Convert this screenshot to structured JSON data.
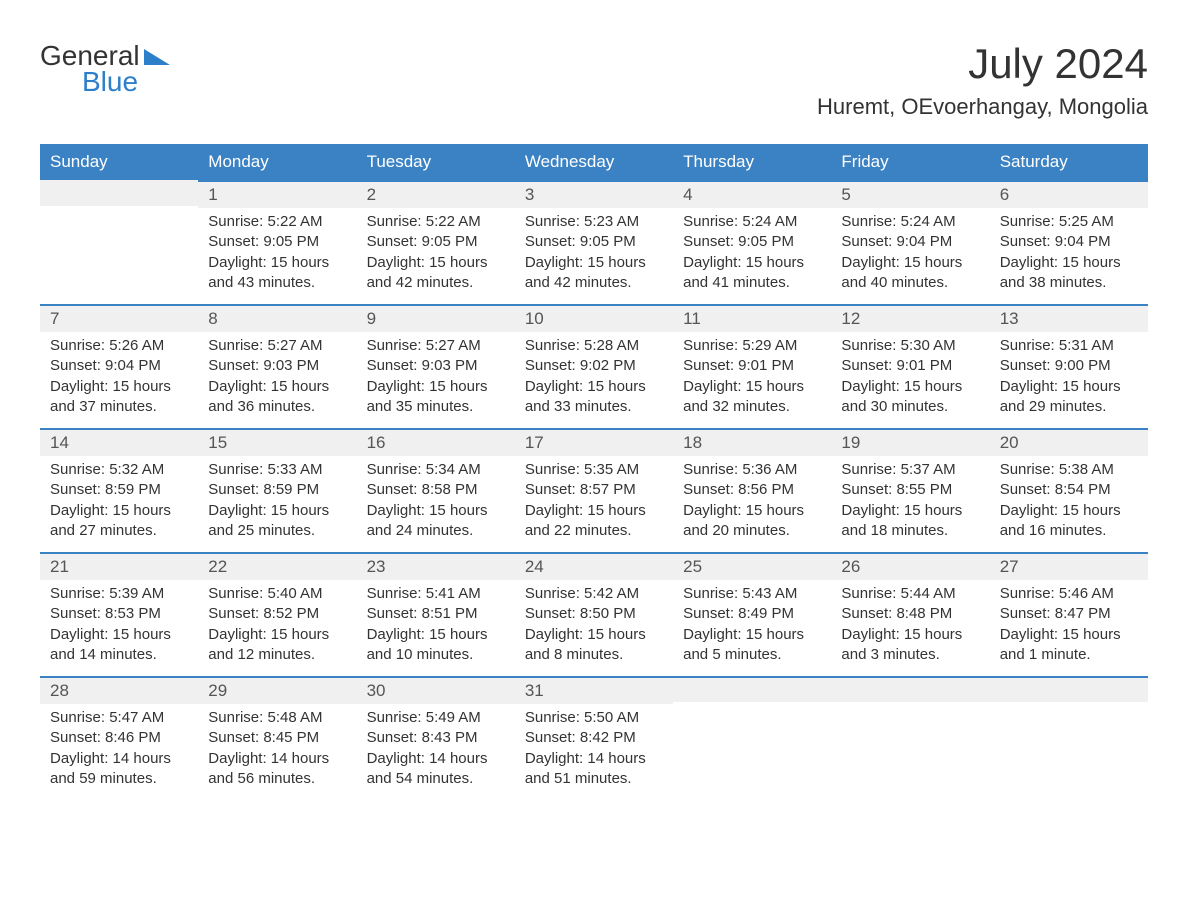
{
  "logo": {
    "text1": "General",
    "text2": "Blue",
    "text_color_primary": "#333333",
    "text_color_accent": "#2d7fc9",
    "triangle_color": "#2d7fc9"
  },
  "header": {
    "month_title": "July 2024",
    "location": "Huremt, OEvoerhangay, Mongolia",
    "title_fontsize": 42,
    "location_fontsize": 22
  },
  "colors": {
    "header_bg": "#3b82c4",
    "header_text": "#ffffff",
    "day_strip_bg": "#f0f0f0",
    "day_strip_border": "#3b82c4",
    "body_bg": "#ffffff",
    "text": "#333333",
    "day_num_color": "#555555"
  },
  "calendar": {
    "columns": [
      "Sunday",
      "Monday",
      "Tuesday",
      "Wednesday",
      "Thursday",
      "Friday",
      "Saturday"
    ],
    "weeks": [
      [
        null,
        {
          "num": "1",
          "sunrise": "Sunrise: 5:22 AM",
          "sunset": "Sunset: 9:05 PM",
          "daylight": "Daylight: 15 hours and 43 minutes."
        },
        {
          "num": "2",
          "sunrise": "Sunrise: 5:22 AM",
          "sunset": "Sunset: 9:05 PM",
          "daylight": "Daylight: 15 hours and 42 minutes."
        },
        {
          "num": "3",
          "sunrise": "Sunrise: 5:23 AM",
          "sunset": "Sunset: 9:05 PM",
          "daylight": "Daylight: 15 hours and 42 minutes."
        },
        {
          "num": "4",
          "sunrise": "Sunrise: 5:24 AM",
          "sunset": "Sunset: 9:05 PM",
          "daylight": "Daylight: 15 hours and 41 minutes."
        },
        {
          "num": "5",
          "sunrise": "Sunrise: 5:24 AM",
          "sunset": "Sunset: 9:04 PM",
          "daylight": "Daylight: 15 hours and 40 minutes."
        },
        {
          "num": "6",
          "sunrise": "Sunrise: 5:25 AM",
          "sunset": "Sunset: 9:04 PM",
          "daylight": "Daylight: 15 hours and 38 minutes."
        }
      ],
      [
        {
          "num": "7",
          "sunrise": "Sunrise: 5:26 AM",
          "sunset": "Sunset: 9:04 PM",
          "daylight": "Daylight: 15 hours and 37 minutes."
        },
        {
          "num": "8",
          "sunrise": "Sunrise: 5:27 AM",
          "sunset": "Sunset: 9:03 PM",
          "daylight": "Daylight: 15 hours and 36 minutes."
        },
        {
          "num": "9",
          "sunrise": "Sunrise: 5:27 AM",
          "sunset": "Sunset: 9:03 PM",
          "daylight": "Daylight: 15 hours and 35 minutes."
        },
        {
          "num": "10",
          "sunrise": "Sunrise: 5:28 AM",
          "sunset": "Sunset: 9:02 PM",
          "daylight": "Daylight: 15 hours and 33 minutes."
        },
        {
          "num": "11",
          "sunrise": "Sunrise: 5:29 AM",
          "sunset": "Sunset: 9:01 PM",
          "daylight": "Daylight: 15 hours and 32 minutes."
        },
        {
          "num": "12",
          "sunrise": "Sunrise: 5:30 AM",
          "sunset": "Sunset: 9:01 PM",
          "daylight": "Daylight: 15 hours and 30 minutes."
        },
        {
          "num": "13",
          "sunrise": "Sunrise: 5:31 AM",
          "sunset": "Sunset: 9:00 PM",
          "daylight": "Daylight: 15 hours and 29 minutes."
        }
      ],
      [
        {
          "num": "14",
          "sunrise": "Sunrise: 5:32 AM",
          "sunset": "Sunset: 8:59 PM",
          "daylight": "Daylight: 15 hours and 27 minutes."
        },
        {
          "num": "15",
          "sunrise": "Sunrise: 5:33 AM",
          "sunset": "Sunset: 8:59 PM",
          "daylight": "Daylight: 15 hours and 25 minutes."
        },
        {
          "num": "16",
          "sunrise": "Sunrise: 5:34 AM",
          "sunset": "Sunset: 8:58 PM",
          "daylight": "Daylight: 15 hours and 24 minutes."
        },
        {
          "num": "17",
          "sunrise": "Sunrise: 5:35 AM",
          "sunset": "Sunset: 8:57 PM",
          "daylight": "Daylight: 15 hours and 22 minutes."
        },
        {
          "num": "18",
          "sunrise": "Sunrise: 5:36 AM",
          "sunset": "Sunset: 8:56 PM",
          "daylight": "Daylight: 15 hours and 20 minutes."
        },
        {
          "num": "19",
          "sunrise": "Sunrise: 5:37 AM",
          "sunset": "Sunset: 8:55 PM",
          "daylight": "Daylight: 15 hours and 18 minutes."
        },
        {
          "num": "20",
          "sunrise": "Sunrise: 5:38 AM",
          "sunset": "Sunset: 8:54 PM",
          "daylight": "Daylight: 15 hours and 16 minutes."
        }
      ],
      [
        {
          "num": "21",
          "sunrise": "Sunrise: 5:39 AM",
          "sunset": "Sunset: 8:53 PM",
          "daylight": "Daylight: 15 hours and 14 minutes."
        },
        {
          "num": "22",
          "sunrise": "Sunrise: 5:40 AM",
          "sunset": "Sunset: 8:52 PM",
          "daylight": "Daylight: 15 hours and 12 minutes."
        },
        {
          "num": "23",
          "sunrise": "Sunrise: 5:41 AM",
          "sunset": "Sunset: 8:51 PM",
          "daylight": "Daylight: 15 hours and 10 minutes."
        },
        {
          "num": "24",
          "sunrise": "Sunrise: 5:42 AM",
          "sunset": "Sunset: 8:50 PM",
          "daylight": "Daylight: 15 hours and 8 minutes."
        },
        {
          "num": "25",
          "sunrise": "Sunrise: 5:43 AM",
          "sunset": "Sunset: 8:49 PM",
          "daylight": "Daylight: 15 hours and 5 minutes."
        },
        {
          "num": "26",
          "sunrise": "Sunrise: 5:44 AM",
          "sunset": "Sunset: 8:48 PM",
          "daylight": "Daylight: 15 hours and 3 minutes."
        },
        {
          "num": "27",
          "sunrise": "Sunrise: 5:46 AM",
          "sunset": "Sunset: 8:47 PM",
          "daylight": "Daylight: 15 hours and 1 minute."
        }
      ],
      [
        {
          "num": "28",
          "sunrise": "Sunrise: 5:47 AM",
          "sunset": "Sunset: 8:46 PM",
          "daylight": "Daylight: 14 hours and 59 minutes."
        },
        {
          "num": "29",
          "sunrise": "Sunrise: 5:48 AM",
          "sunset": "Sunset: 8:45 PM",
          "daylight": "Daylight: 14 hours and 56 minutes."
        },
        {
          "num": "30",
          "sunrise": "Sunrise: 5:49 AM",
          "sunset": "Sunset: 8:43 PM",
          "daylight": "Daylight: 14 hours and 54 minutes."
        },
        {
          "num": "31",
          "sunrise": "Sunrise: 5:50 AM",
          "sunset": "Sunset: 8:42 PM",
          "daylight": "Daylight: 14 hours and 51 minutes."
        },
        null,
        null,
        null
      ]
    ]
  }
}
